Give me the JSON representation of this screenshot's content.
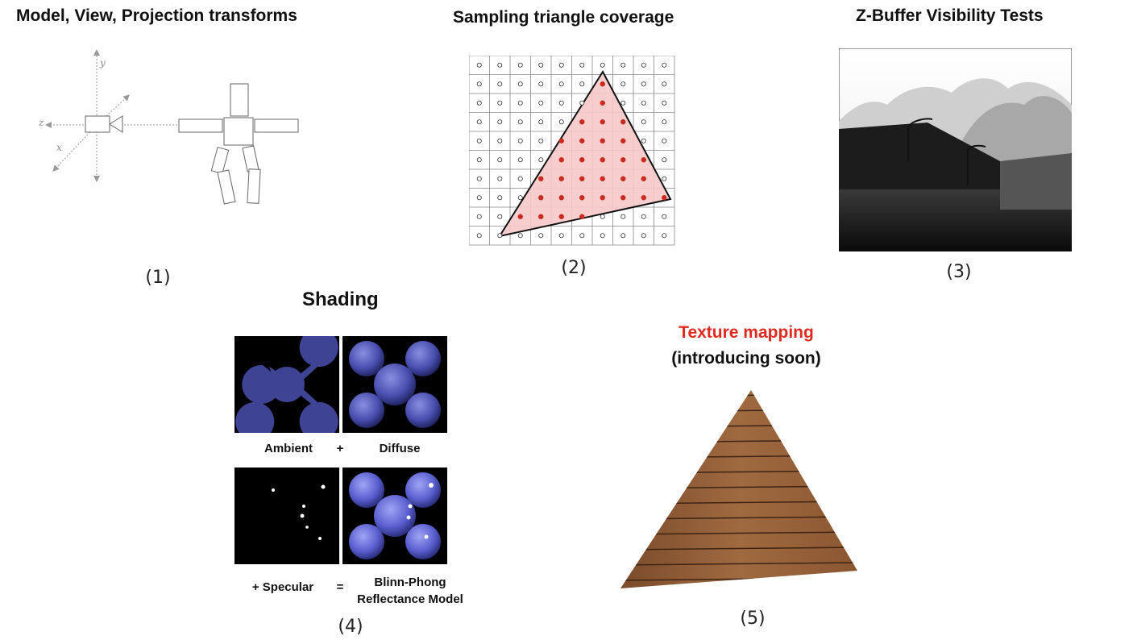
{
  "panels": {
    "transforms": {
      "title": "Model, View, Projection transforms",
      "number": "(1)",
      "axis_labels": {
        "y": "y",
        "z": "z",
        "x": "x"
      }
    },
    "sampling": {
      "title": "Sampling triangle coverage",
      "number": "(2)"
    },
    "zbuffer": {
      "title": "Z-Buffer Visibility Tests",
      "number": "(3)"
    },
    "shading": {
      "title": "Shading",
      "number": "(4)",
      "labels": {
        "ambient": "Ambient",
        "plus": "+",
        "diffuse": "Diffuse",
        "specular": "+ Specular",
        "equals": "=",
        "blinn_line1": "Blinn-Phong",
        "blinn_line2": "Reflectance Model"
      }
    },
    "texture": {
      "title": "Texture mapping",
      "subtitle": "(introducing soon)",
      "number": "(5)"
    }
  },
  "colors": {
    "texture_title": "#e02a1f",
    "covered_sample": "#cc2a1e",
    "triangle_fill": "#f6c8c8",
    "blob": "#4a4fb0"
  }
}
